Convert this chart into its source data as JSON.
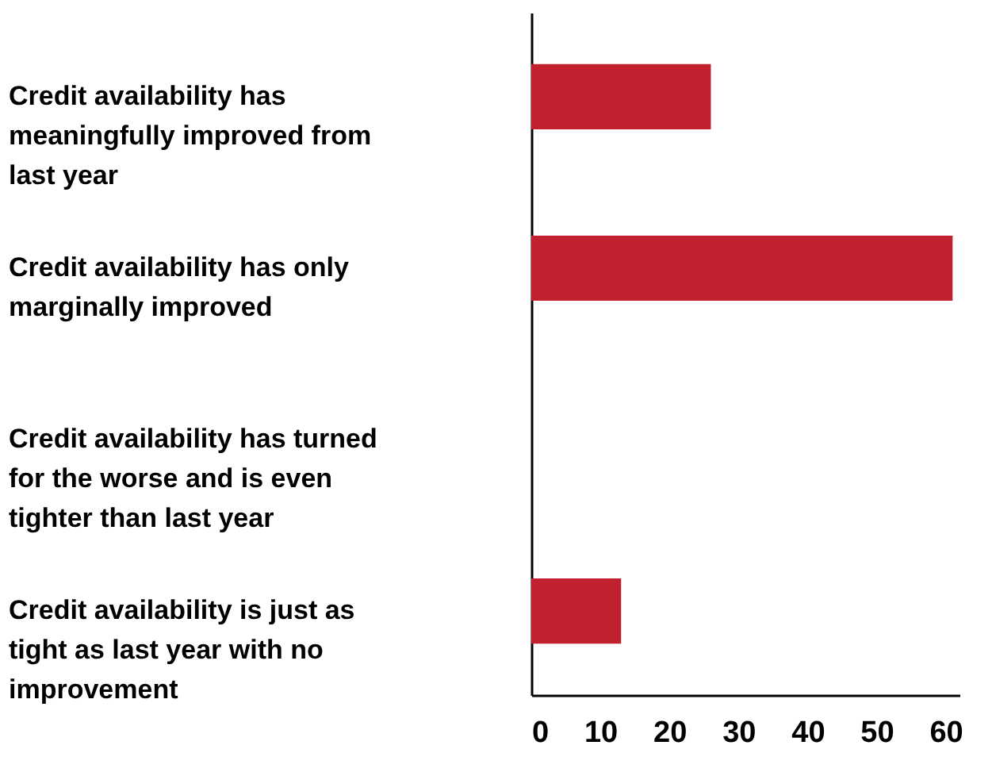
{
  "chart_data": {
    "type": "bar",
    "orientation": "horizontal",
    "categories": [
      "Credit availability has meaningfully improved from last year",
      "Credit availability has only marginally improved",
      "Credit availability has turned for the worse and is even tighter than last year",
      "Credit availability is just as tight as last year with no improvement"
    ],
    "values": [
      26,
      61,
      0,
      13
    ],
    "color": "#c1202f",
    "xlim": [
      0,
      62
    ],
    "xticks": [
      0,
      10,
      20,
      30,
      40,
      50,
      60
    ],
    "grid": false
  }
}
